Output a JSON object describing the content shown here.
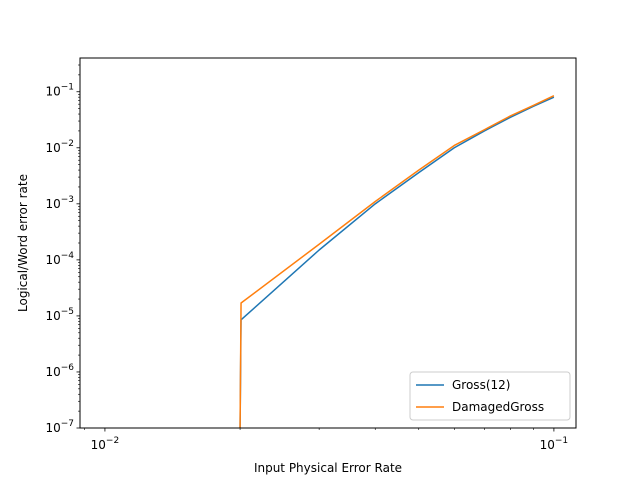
{
  "chart_data": {
    "type": "line",
    "title": "",
    "xlabel": "Input Physical Error Rate",
    "ylabel": "Logical/Word error rate",
    "xscale": "log",
    "yscale": "log",
    "xlim": [
      0.0088,
      0.112
    ],
    "ylim": [
      1e-07,
      0.4
    ],
    "x_ticks": [
      {
        "value": 0.01,
        "base": "10",
        "exp": "−2"
      },
      {
        "value": 0.1,
        "base": "10",
        "exp": "−1"
      }
    ],
    "y_ticks": [
      {
        "value": 1e-07,
        "base": "10",
        "exp": "−7"
      },
      {
        "value": 1e-06,
        "base": "10",
        "exp": "−6"
      },
      {
        "value": 1e-05,
        "base": "10",
        "exp": "−5"
      },
      {
        "value": 0.0001,
        "base": "10",
        "exp": "−4"
      },
      {
        "value": 0.001,
        "base": "10",
        "exp": "−3"
      },
      {
        "value": 0.01,
        "base": "10",
        "exp": "−2"
      },
      {
        "value": 0.1,
        "base": "10",
        "exp": "−1"
      }
    ],
    "grid": false,
    "legend_position": "lower right",
    "series": [
      {
        "name": "Gross(12)",
        "color": "#1f77b4",
        "x": [
          0.02,
          0.0201,
          0.03,
          0.04,
          0.05,
          0.06,
          0.07,
          0.08,
          0.09,
          0.1
        ],
        "y": [
          1e-07,
          8.5e-06,
          0.00015,
          0.001,
          0.0036,
          0.01,
          0.02,
          0.035,
          0.055,
          0.08
        ]
      },
      {
        "name": "DamagedGross",
        "color": "#ff7f0e",
        "x": [
          0.02,
          0.0201,
          0.03,
          0.04,
          0.05,
          0.06,
          0.07,
          0.08,
          0.09,
          0.1
        ],
        "y": [
          1e-07,
          1.7e-05,
          0.00019,
          0.0011,
          0.004,
          0.011,
          0.021,
          0.037,
          0.057,
          0.085
        ]
      }
    ]
  }
}
